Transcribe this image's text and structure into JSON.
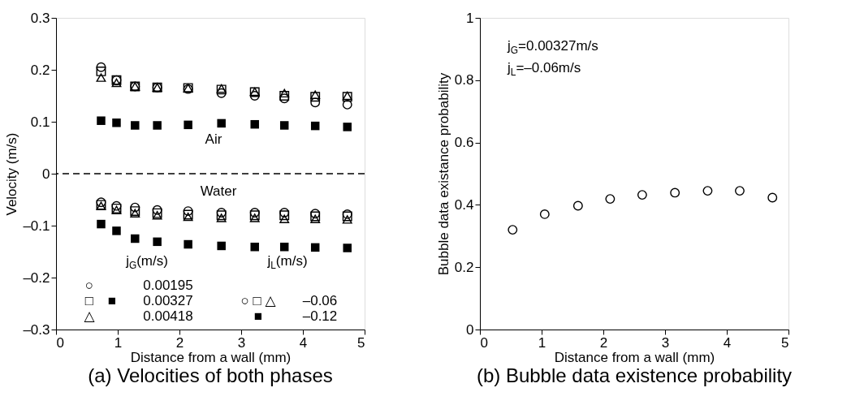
{
  "chart_data": [
    {
      "type": "scatter",
      "title": "(a) Velocities of both phases",
      "xlabel": "Distance from a wall (mm)",
      "ylabel": "Velocity (m/s)",
      "x": [
        0.73,
        0.98,
        1.28,
        1.64,
        2.14,
        2.68,
        3.22,
        3.7,
        4.2,
        4.72
      ],
      "series": [
        {
          "color": "#000000",
          "marker": "circle",
          "values": [
            0.205,
            0.18,
            0.168,
            0.166,
            0.163,
            0.155,
            0.15,
            0.145,
            0.137,
            0.133
          ]
        },
        {
          "color": "#000000",
          "marker": "square",
          "values": [
            0.197,
            0.18,
            0.168,
            0.166,
            0.165,
            0.162,
            0.157,
            0.15,
            0.148,
            0.148
          ]
        },
        {
          "color": "#000000",
          "marker": "triangle",
          "values": [
            0.185,
            0.175,
            0.168,
            0.166,
            0.165,
            0.164,
            0.158,
            0.155,
            0.152,
            0.15
          ]
        },
        {
          "color": "#000000",
          "marker": "square",
          "values": [
            0.102,
            0.098,
            0.093,
            0.093,
            0.094,
            0.097,
            0.095,
            0.093,
            0.092,
            0.09
          ]
        },
        {
          "color": "#000000",
          "marker": "circle",
          "values": [
            -0.055,
            -0.062,
            -0.065,
            -0.07,
            -0.072,
            -0.075,
            -0.075,
            -0.075,
            -0.077,
            -0.078
          ]
        },
        {
          "color": "#000000",
          "marker": "square",
          "values": [
            -0.06,
            -0.067,
            -0.072,
            -0.076,
            -0.079,
            -0.08,
            -0.08,
            -0.08,
            -0.082,
            -0.082
          ]
        },
        {
          "color": "#000000",
          "marker": "triangle",
          "values": [
            -0.062,
            -0.07,
            -0.076,
            -0.08,
            -0.083,
            -0.085,
            -0.085,
            -0.087,
            -0.087,
            -0.088
          ]
        },
        {
          "color": "#000000",
          "marker": "square",
          "values": [
            -0.097,
            -0.11,
            -0.125,
            -0.131,
            -0.136,
            -0.139,
            -0.141,
            -0.141,
            -0.142,
            -0.143
          ]
        }
      ],
      "xlim": [
        0,
        5
      ],
      "xticks": [
        0,
        1,
        2,
        3,
        4,
        5
      ],
      "ylim": [
        -0.3,
        0.3
      ],
      "yticks": [
        {
          "value": -0.3,
          "label": "–0.3"
        },
        {
          "value": -0.2,
          "label": "–0.2"
        },
        {
          "value": -0.1,
          "label": "–0.1"
        },
        0,
        0.1,
        0.2,
        0.3
      ],
      "ref_lines": [
        {
          "axis": "y",
          "value": 0,
          "line_style": "dashed"
        }
      ],
      "annotations": [
        "Air",
        "Water",
        "j$_{G}$(m/s)",
        "○",
        "0.00195",
        "□",
        "■",
        "0.00327",
        "△",
        "0.00418",
        "j$_{L}$(m/s)",
        "○ □ △",
        "–0.06",
        "■",
        "–0.12"
      ],
      "grid": false
    },
    {
      "type": "scatter",
      "title": "(b) Bubble data existence probability",
      "xlabel": "Distance from a wall (mm)",
      "ylabel": "Bubble data existance probability",
      "x": [
        0.53,
        1.05,
        1.59,
        2.11,
        2.63,
        3.16,
        3.69,
        4.21,
        4.74
      ],
      "series": [
        {
          "color": "#000000",
          "marker": "circle",
          "values": [
            0.32,
            0.37,
            0.397,
            0.419,
            0.432,
            0.439,
            0.445,
            0.445,
            0.423
          ]
        }
      ],
      "xlim": [
        0,
        5
      ],
      "xticks": [
        0,
        1,
        2,
        3,
        4,
        5
      ],
      "ylim": [
        0,
        1
      ],
      "yticks": [
        0,
        0.2,
        0.4,
        0.6,
        0.8,
        1
      ],
      "annotations": [
        "j$_{G}$=0.00327m/s",
        "j$_{L}$=–0.06m/s"
      ],
      "grid": false
    }
  ]
}
